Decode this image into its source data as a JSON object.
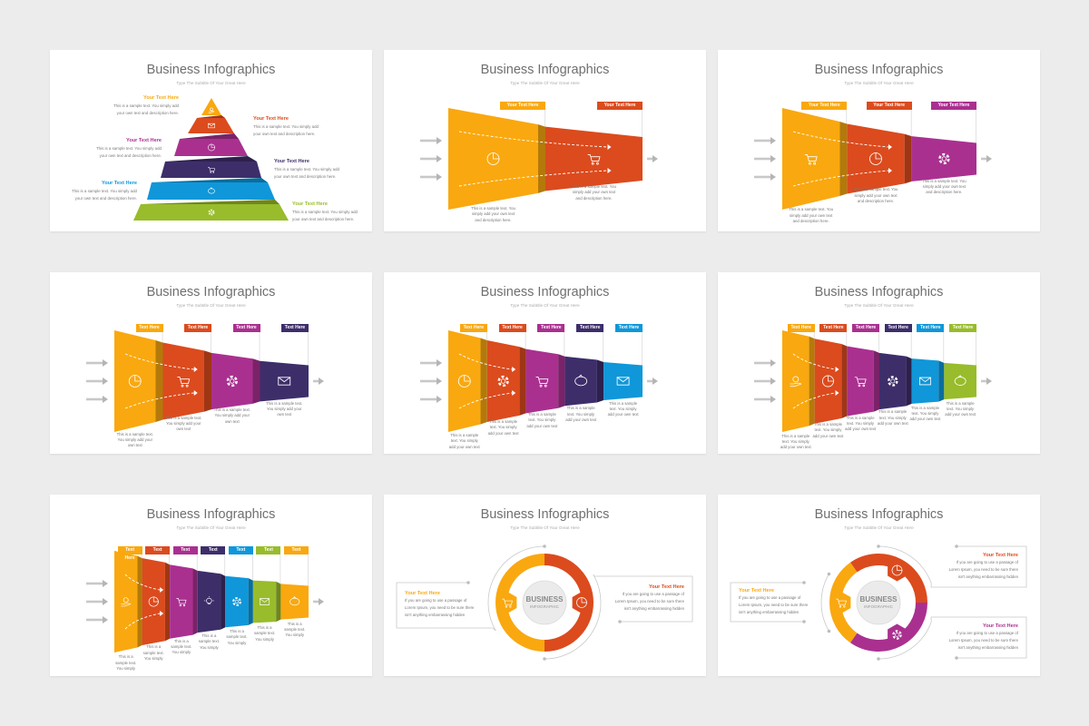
{
  "colors": {
    "background": "#ececec",
    "orange": "#F9A80F",
    "red": "#DB4B1E",
    "purple": "#AA3090",
    "dark_purple": "#3D2E6A",
    "blue": "#0F97D9",
    "green": "#98BC2B",
    "title_gray": "#6f6f6f"
  },
  "slides": [
    {
      "title": "Business Infographics",
      "subtitle": "Type The Subtitle Of Your Great Here",
      "type": "pyramid",
      "tiers": [
        {
          "heading": "Your Text Here",
          "line1": "This is a sample text. You simply add",
          "line2": "your own text and description here.",
          "icon": "dollar-hand-icon",
          "color": "#F9A80F"
        },
        {
          "heading": "Your Text Here",
          "line1": "This is a sample text. You simply add",
          "line2": "your own text and description here.",
          "icon": "mail-icon",
          "color": "#DB4B1E"
        },
        {
          "heading": "Your Text Here",
          "line1": "This is a sample text. You simply add",
          "line2": "your own text and description here.",
          "icon": "pie-chart-icon",
          "color": "#AA3090"
        },
        {
          "heading": "Your Text Here",
          "line1": "This is a sample text. You simply add",
          "line2": "your own text and description here.",
          "icon": "shopping-cart-icon",
          "color": "#3D2E6A"
        },
        {
          "heading": "Your Text Here",
          "line1": "This is a sample text. You simply add",
          "line2": "your own text and description here.",
          "icon": "piggy-bank-icon",
          "color": "#0F97D9"
        },
        {
          "heading": "Your Text Here",
          "line1": "This is a sample text. You simply add",
          "line2": "your own text and description here.",
          "icon": "gear-icon",
          "color": "#98BC2B"
        }
      ]
    },
    {
      "title": "Business Infographics",
      "subtitle": "Type The Subtitle Of Your Great Here",
      "type": "funnel",
      "segments": [
        {
          "tag": "Your Text Here",
          "desc": [
            "This is a sample text. You",
            "simply add your own text",
            "and description here."
          ],
          "icon": "pie-chart-icon",
          "color": "#F9A80F"
        },
        {
          "tag": "Your Text Here",
          "desc": [
            "This is a sample text. You",
            "simply add your own text",
            "and description here."
          ],
          "icon": "shopping-cart-icon",
          "color": "#DB4B1E"
        }
      ]
    },
    {
      "title": "Business Infographics",
      "subtitle": "Type The Subtitle Of Your Great Here",
      "type": "funnel",
      "segments": [
        {
          "tag": "Your Text Here",
          "desc": [
            "This is a sample text. You",
            "simply add your own text",
            "and description here."
          ],
          "icon": "shopping-cart-icon",
          "color": "#F9A80F"
        },
        {
          "tag": "Your Text Here",
          "desc": [
            "This is a sample text. You",
            "simply add your own text",
            "and description here."
          ],
          "icon": "pie-chart-icon",
          "color": "#DB4B1E"
        },
        {
          "tag": "Your Text Here",
          "desc": [
            "This is a sample text. You",
            "simply add your own text",
            "and description here."
          ],
          "icon": "gear-icon",
          "color": "#AA3090"
        }
      ]
    },
    {
      "title": "Business Infographics",
      "subtitle": "Type The Subtitle Of Your Great Here",
      "type": "funnel",
      "segments": [
        {
          "tag": "Text Here",
          "desc": [
            "This is a sample text.",
            "You simply add your",
            "own text"
          ],
          "icon": "pie-chart-icon",
          "color": "#F9A80F"
        },
        {
          "tag": "Text Here",
          "desc": [
            "This is a sample text.",
            "You simply add your",
            "own text"
          ],
          "icon": "shopping-cart-icon",
          "color": "#DB4B1E"
        },
        {
          "tag": "Text Here",
          "desc": [
            "This is a sample text.",
            "You simply add your",
            "own text"
          ],
          "icon": "gear-icon",
          "color": "#AA3090"
        },
        {
          "tag": "Text Here",
          "desc": [
            "This is a sample text.",
            "You simply add your",
            "own text"
          ],
          "icon": "mail-icon",
          "color": "#3D2E6A"
        }
      ]
    },
    {
      "title": "Business Infographics",
      "subtitle": "Type The Subtitle Of Your Great Here",
      "type": "funnel",
      "segments": [
        {
          "tag": "Text Here",
          "desc": [
            "This is a sample",
            "text. You simply",
            "add your own text"
          ],
          "icon": "pie-chart-icon",
          "color": "#F9A80F"
        },
        {
          "tag": "Text Here",
          "desc": [
            "This is a sample",
            "text. You simply",
            "add your own text"
          ],
          "icon": "gear-icon",
          "color": "#DB4B1E"
        },
        {
          "tag": "Text Here",
          "desc": [
            "This is a sample",
            "text. You simply",
            "add your own text"
          ],
          "icon": "shopping-cart-icon",
          "color": "#AA3090"
        },
        {
          "tag": "Text Here",
          "desc": [
            "This is a sample",
            "text. You simply",
            "add your own text"
          ],
          "icon": "piggy-bank-icon",
          "color": "#3D2E6A"
        },
        {
          "tag": "Text Here",
          "desc": [
            "This is a sample",
            "text. You simply",
            "add your own text"
          ],
          "icon": "mail-icon",
          "color": "#0F97D9"
        }
      ]
    },
    {
      "title": "Business Infographics",
      "subtitle": "Type The Subtitle Of Your Great Here",
      "type": "funnel",
      "segments": [
        {
          "tag": "Text Here",
          "desc": [
            "This is a sample",
            "text. You simply",
            "add your own text"
          ],
          "icon": "dollar-hand-icon",
          "color": "#F9A80F"
        },
        {
          "tag": "Text Here",
          "desc": [
            "This is a sample",
            "text. You simply",
            "add your own text"
          ],
          "icon": "pie-chart-icon",
          "color": "#DB4B1E"
        },
        {
          "tag": "Text Here",
          "desc": [
            "This is a sample",
            "text. You simply",
            "add your own text"
          ],
          "icon": "shopping-cart-icon",
          "color": "#AA3090"
        },
        {
          "tag": "Text Here",
          "desc": [
            "This is a sample",
            "text. You simply",
            "add your own text"
          ],
          "icon": "gear-icon",
          "color": "#3D2E6A"
        },
        {
          "tag": "Text Here",
          "desc": [
            "This is a sample",
            "text. You simply",
            "add your own text"
          ],
          "icon": "mail-icon",
          "color": "#0F97D9"
        },
        {
          "tag": "Text Here",
          "desc": [
            "This is a sample",
            "text. You simply",
            "add your own text"
          ],
          "icon": "piggy-bank-icon",
          "color": "#98BC2B"
        }
      ]
    },
    {
      "title": "Business Infographics",
      "subtitle": "Type The Subtitle Of Your Great Here",
      "type": "funnel",
      "segments": [
        {
          "tag": "Text Here",
          "desc": [
            "This is a",
            "sample text.",
            "You simply"
          ],
          "icon": "dollar-hand-icon",
          "color": "#F9A80F"
        },
        {
          "tag": "Text Here",
          "desc": [
            "This is a",
            "sample text.",
            "You simply"
          ],
          "icon": "pie-chart-icon",
          "color": "#DB4B1E"
        },
        {
          "tag": "Text Here",
          "desc": [
            "This is a",
            "sample text.",
            "You simply"
          ],
          "icon": "shopping-cart-icon",
          "color": "#AA3090"
        },
        {
          "tag": "Text Here",
          "desc": [
            "This is a",
            "sample text.",
            "You simply"
          ],
          "icon": "light-bulb-icon",
          "color": "#3D2E6A"
        },
        {
          "tag": "Text Here",
          "desc": [
            "This is a",
            "sample text.",
            "You simply"
          ],
          "icon": "gear-icon",
          "color": "#0F97D9"
        },
        {
          "tag": "Text Here",
          "desc": [
            "This is a",
            "sample text.",
            "You simply"
          ],
          "icon": "mail-icon",
          "color": "#98BC2B"
        },
        {
          "tag": "Text Here",
          "desc": [
            "This is a",
            "sample text.",
            "You simply"
          ],
          "icon": "piggy-bank-icon",
          "color": "#F9A80F"
        }
      ]
    },
    {
      "title": "Business Infographics",
      "subtitle": "Type The Subtitle Of Your Great Here",
      "type": "donut2",
      "center": {
        "line1": "BUSINESS",
        "line2": "INFOGRAPHIC"
      },
      "callouts": [
        {
          "heading": "Your Text Here",
          "lines": [
            "If you are going to use a passage of",
            "Lorem Ipsum, you need to be sure there",
            "isn't anything embarrassing hidden"
          ],
          "icon": "shopping-cart-icon",
          "color": "#F9A80F"
        },
        {
          "heading": "Your Text Here",
          "lines": [
            "If you are going to use a passage of",
            "Lorem Ipsum, you need to be sure there",
            "isn't anything embarrassing hidden"
          ],
          "icon": "pie-chart-icon",
          "color": "#DB4B1E"
        }
      ]
    },
    {
      "title": "Business Infographics",
      "subtitle": "Type The Subtitle Of Your Great Here",
      "type": "donut3",
      "center": {
        "line1": "BUSINESS",
        "line2": "INFOGRAPHIC"
      },
      "callouts": [
        {
          "heading": "Your Text Here",
          "lines": [
            "If you are going to use a passage of",
            "Lorem Ipsum, you need to be sure there",
            "isn't anything embarrassing hidden"
          ],
          "icon": "shopping-cart-icon",
          "color": "#F9A80F"
        },
        {
          "heading": "Your Text Here",
          "lines": [
            "If you are going to use a passage of",
            "Lorem Ipsum, you need to be sure there",
            "isn't anything embarrassing hidden"
          ],
          "icon": "pie-chart-icon",
          "color": "#DB4B1E"
        },
        {
          "heading": "Your Text Here",
          "lines": [
            "If you are going to use a passage of",
            "Lorem Ipsum, you need to be sure there",
            "isn't anything embarrassing hidden"
          ],
          "icon": "gear-icon",
          "color": "#AA3090"
        }
      ]
    }
  ]
}
